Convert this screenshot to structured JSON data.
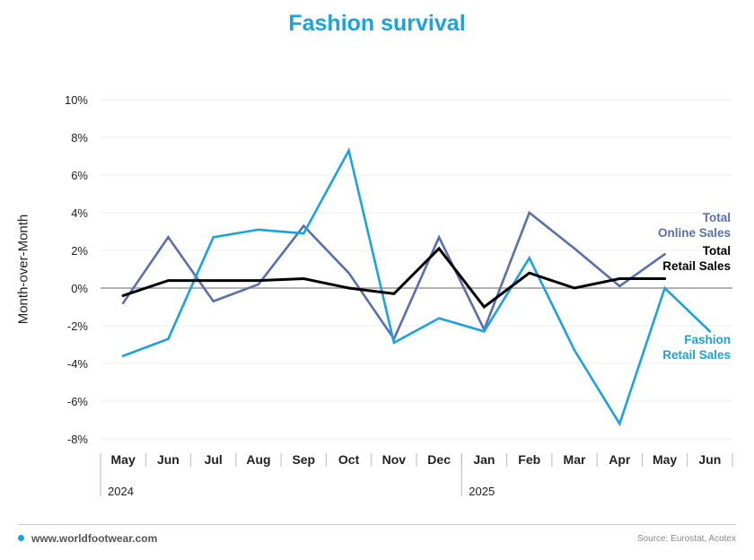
{
  "title": "Fashion survival",
  "footer": {
    "website": "www.worldfootwear.com",
    "source": "Source: Eurostat, Acotex"
  },
  "chart_data": {
    "type": "line",
    "title": "Fashion survival",
    "xlabel": "",
    "ylabel": "Month-over-Month",
    "categories": [
      "May",
      "Jun",
      "Jul",
      "Aug",
      "Sep",
      "Oct",
      "Nov",
      "Dec",
      "Jan",
      "Feb",
      "Mar",
      "Apr",
      "May",
      "Jun"
    ],
    "year_groups": [
      {
        "label": "2024",
        "start_index": 0
      },
      {
        "label": "2025",
        "start_index": 8
      }
    ],
    "ylim": [
      -8,
      10
    ],
    "yticks": [
      -8,
      -6,
      -4,
      -2,
      0,
      2,
      4,
      6,
      8,
      10
    ],
    "ytick_labels": [
      "-8%",
      "-6%",
      "-4%",
      "-2%",
      "0%",
      "2%",
      "4%",
      "6%",
      "8%",
      "10%"
    ],
    "grid": true,
    "legend": "direct labels at right end of lines",
    "series": [
      {
        "name": "Total Online Sales",
        "label_lines": [
          "Total",
          "Online Sales"
        ],
        "color": "#5a6fae",
        "values": [
          -0.8,
          2.7,
          -0.7,
          0.2,
          3.3,
          0.8,
          -2.7,
          2.7,
          -2.2,
          4.0,
          2.1,
          0.1,
          1.8,
          null
        ]
      },
      {
        "name": "Total Retail Sales",
        "label_lines": [
          "Total",
          "Retail Sales"
        ],
        "color": "#000000",
        "values": [
          -0.4,
          0.4,
          0.4,
          0.4,
          0.5,
          0.0,
          -0.3,
          2.1,
          -1.0,
          0.8,
          0.0,
          0.5,
          0.5,
          null
        ]
      },
      {
        "name": "Fashion Retail Sales",
        "label_lines": [
          "Fashion",
          "Retail Sales"
        ],
        "color": "#1ba3dd",
        "values": [
          -3.6,
          -2.7,
          2.7,
          3.1,
          2.9,
          7.3,
          -2.9,
          -1.6,
          -2.3,
          1.6,
          -3.3,
          -7.2,
          0.0,
          -2.3
        ]
      }
    ]
  }
}
